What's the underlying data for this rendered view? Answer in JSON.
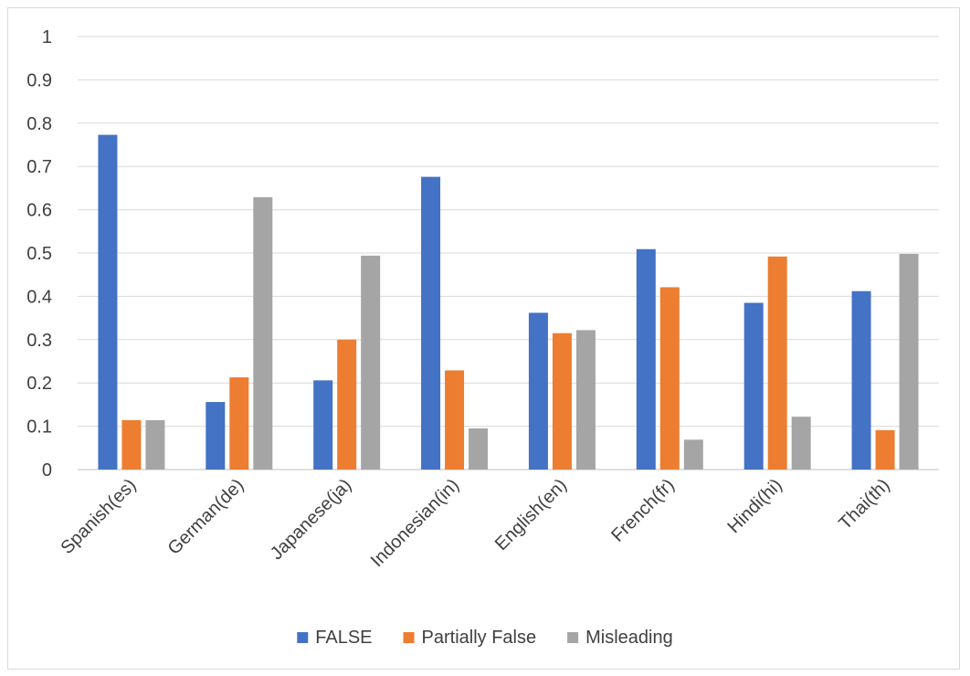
{
  "chart_data": {
    "type": "bar",
    "categories": [
      "Spanish(es)",
      "German(de)",
      "Japanese(ja)",
      "Indonesian(in)",
      "English(en)",
      "French(fr)",
      "Hindi(hi)",
      "Thai(th)"
    ],
    "series": [
      {
        "name": "FALSE",
        "color": "#4472C4",
        "values": [
          0.773,
          0.156,
          0.206,
          0.676,
          0.362,
          0.509,
          0.385,
          0.412
        ]
      },
      {
        "name": "Partially False",
        "color": "#ED7D31",
        "values": [
          0.114,
          0.213,
          0.3,
          0.229,
          0.315,
          0.421,
          0.492,
          0.091
        ]
      },
      {
        "name": "Misleading",
        "color": "#A5A5A5",
        "values": [
          0.114,
          0.629,
          0.494,
          0.095,
          0.322,
          0.069,
          0.122,
          0.498
        ]
      }
    ],
    "y_ticks": [
      "0",
      "0.1",
      "0.2",
      "0.3",
      "0.4",
      "0.5",
      "0.6",
      "0.7",
      "0.8",
      "0.9",
      "1"
    ],
    "ylim": [
      0,
      1
    ],
    "grid": true,
    "legend_position": "bottom",
    "title": "",
    "xlabel": "",
    "ylabel": ""
  }
}
